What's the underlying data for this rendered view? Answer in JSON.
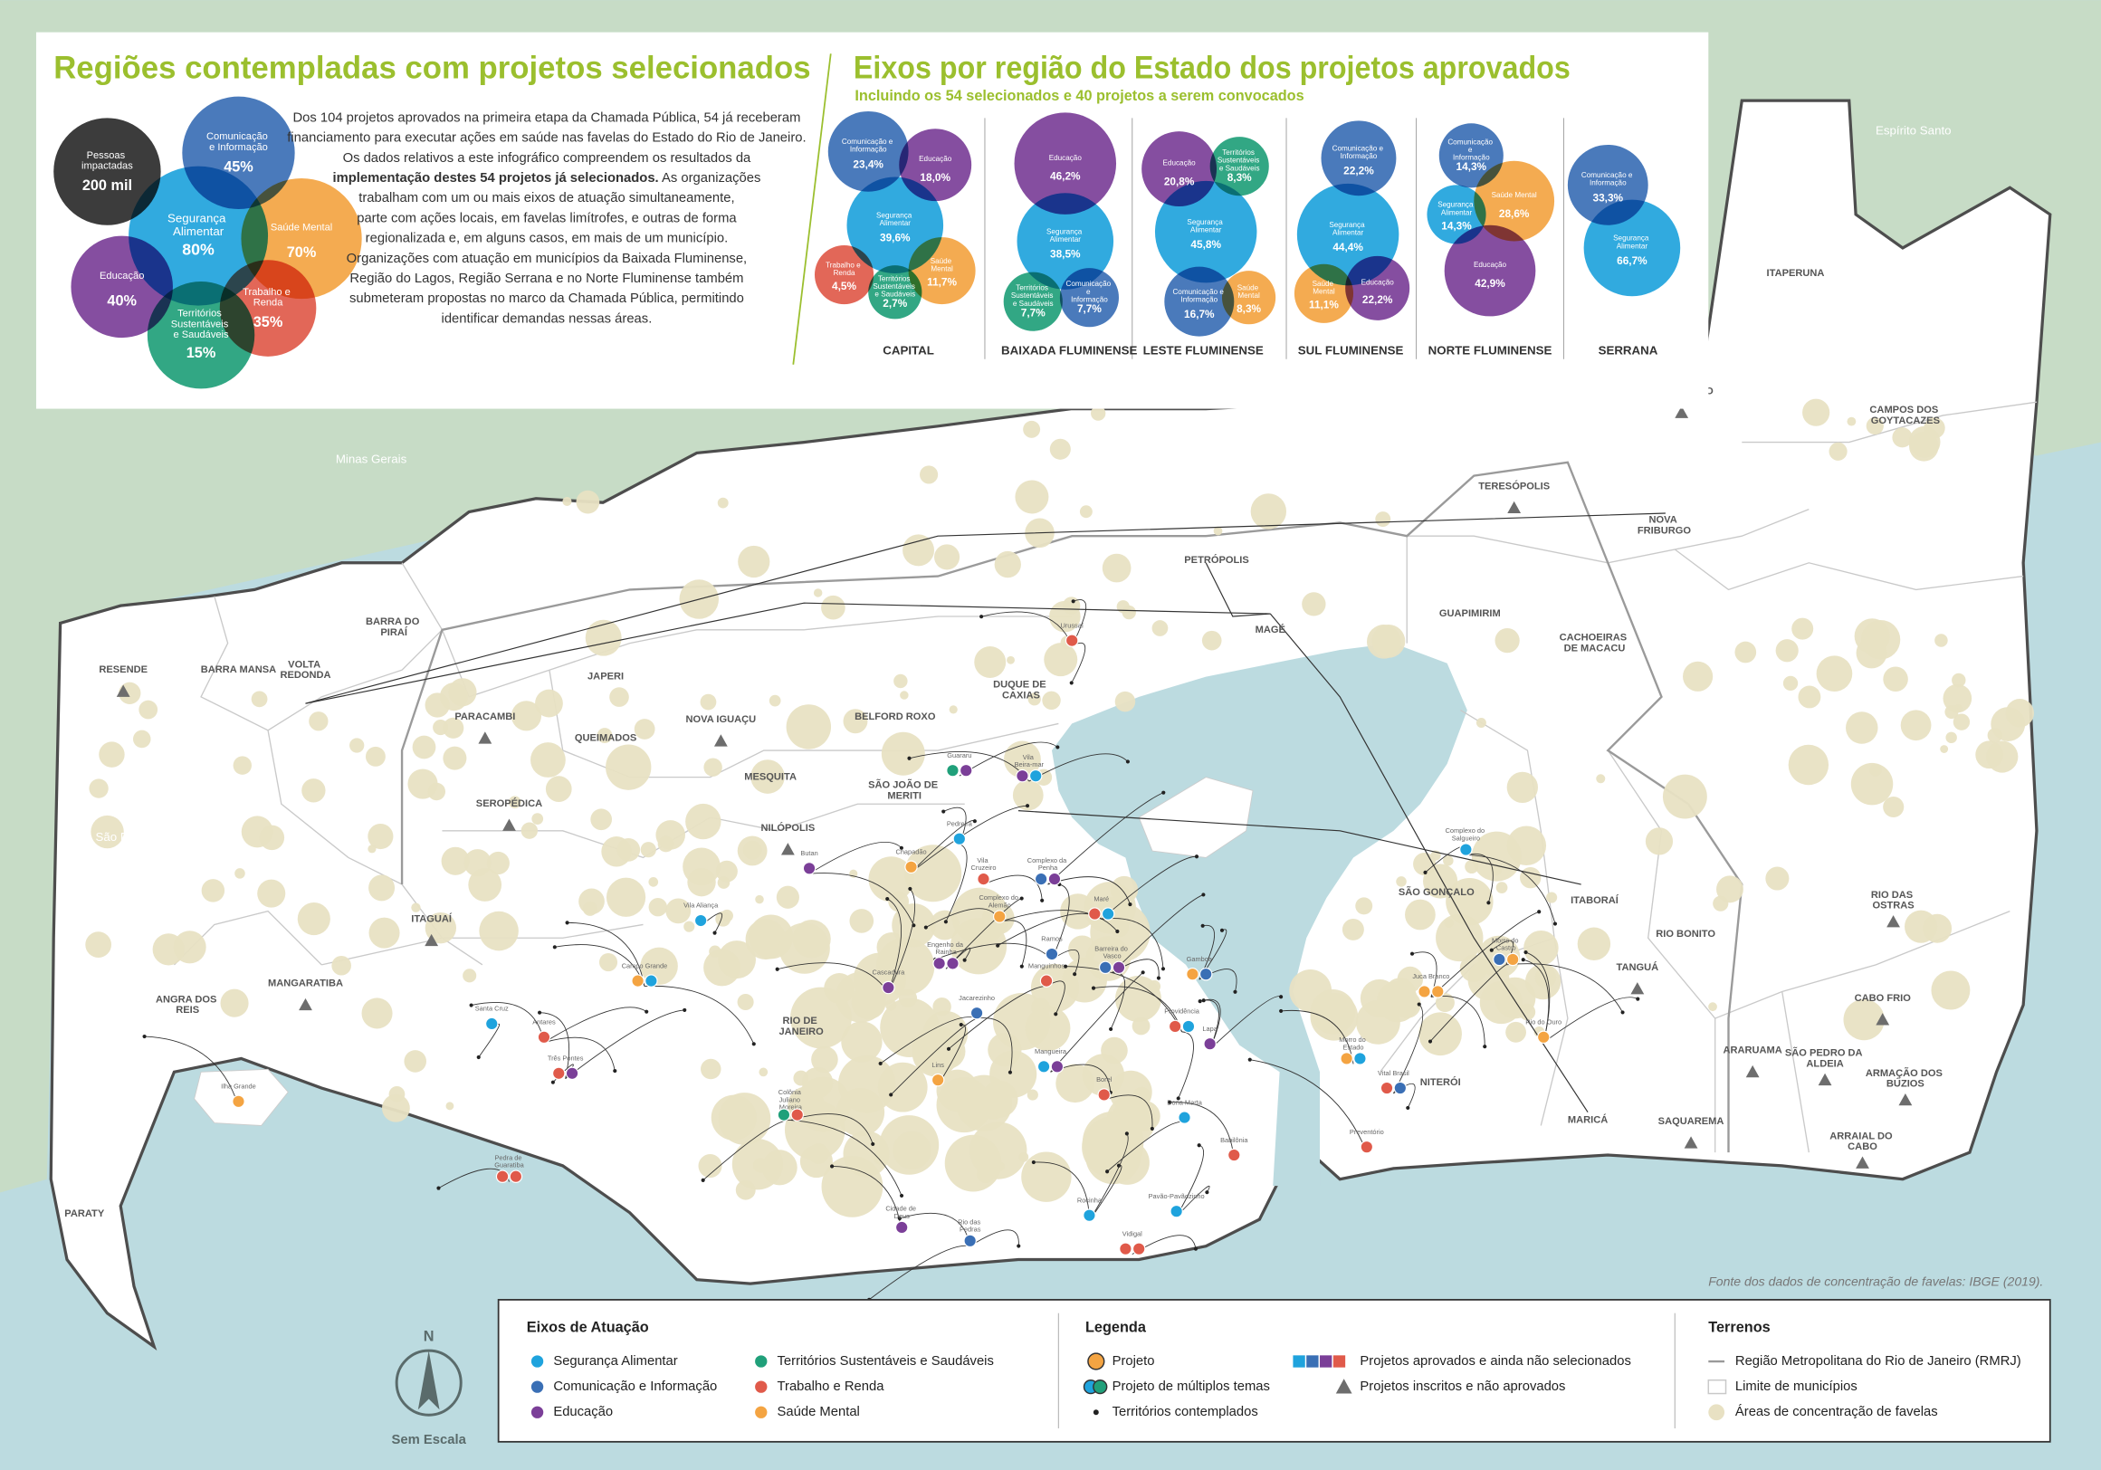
{
  "left_panel": {
    "title": "Regiões contempladas com projetos selecionados",
    "bubbles": [
      {
        "label": "Pessoas impactadas",
        "value": "200 mil",
        "color": "#2b2b2b"
      },
      {
        "label": "Comunicação e Informação",
        "value": "45%",
        "color": "#3a6fb5"
      },
      {
        "label": "Segurança Alimentar",
        "value": "80%",
        "color": "#1fa3dd"
      },
      {
        "label": "Saúde Mental",
        "value": "70%",
        "color": "#f4a442"
      },
      {
        "label": "Educação",
        "value": "40%",
        "color": "#7b3f98"
      },
      {
        "label": "Trabalho e Renda",
        "value": "35%",
        "color": "#e05a4a"
      },
      {
        "label": "Territórios Sustentáveis e Saudáveis",
        "value": "15%",
        "color": "#20a07a"
      }
    ],
    "paragraph": [
      [
        {
          "text": "Dos 104 projetos aprovados na primeira etapa da Chamada Pública, 54 já receberam"
        }
      ],
      [
        {
          "text": "financiamento para executar ações em saúde nas favelas do Estado do Rio de Janeiro."
        }
      ],
      [
        {
          "text": "Os dados relativos a este infográfico compreendem os resultados da"
        }
      ],
      [
        {
          "text": "implementação destes 54 projetos já selecionados.",
          "bold": true
        },
        {
          "text": " As organizações"
        }
      ],
      [
        {
          "text": "trabalham com um ou mais eixos de atuação simultaneamente,"
        }
      ],
      [
        {
          "text": "parte com ações locais, em favelas limítrofes, e outras de forma"
        }
      ],
      [
        {
          "text": "regionalizada e, em alguns casos, em mais de um município."
        }
      ],
      [
        {
          "text": "Organizações com atuação em municípios da Baixada Fluminense,"
        }
      ],
      [
        {
          "text": "Região do Lagos, Região Serrana e no Norte Fluminense também"
        }
      ],
      [
        {
          "text": "submeteram propostas no marco da Chamada Pública, permitindo"
        }
      ],
      [
        {
          "text": "identificar demandas nessas áreas."
        }
      ]
    ]
  },
  "right_panel": {
    "title": "Eixos por região do Estado dos projetos aprovados",
    "subtitle": "Incluindo os 54 selecionados e 40 projetos a serem convocados",
    "regions": [
      {
        "name": "CAPITAL",
        "bubbles": [
          {
            "label": "Comunicação e Informação",
            "value": "23,4%",
            "color": "#3a6fb5"
          },
          {
            "label": "Educação",
            "value": "18,0%",
            "color": "#7b3f98"
          },
          {
            "label": "Segurança Alimentar",
            "value": "39,6%",
            "color": "#1fa3dd"
          },
          {
            "label": "Trabalho e Renda",
            "value": "4,5%",
            "color": "#e05a4a"
          },
          {
            "label": "Territórios Sustentáveis e Saudáveis",
            "value": "2,7%",
            "color": "#20a07a"
          },
          {
            "label": "Saúde Mental",
            "value": "11,7%",
            "color": "#f4a442"
          }
        ]
      },
      {
        "name": "BAIXADA FLUMINENSE",
        "bubbles": [
          {
            "label": "Educação",
            "value": "46,2%",
            "color": "#7b3f98"
          },
          {
            "label": "Segurança Alimentar",
            "value": "38,5%",
            "color": "#1fa3dd"
          },
          {
            "label": "Territórios Sustentáveis e Saudáveis",
            "value": "7,7%",
            "color": "#20a07a"
          },
          {
            "label": "Comunicação e Informação",
            "value": "7,7%",
            "color": "#3a6fb5"
          }
        ]
      },
      {
        "name": "LESTE FLUMINENSE",
        "bubbles": [
          {
            "label": "Educação",
            "value": "20,8%",
            "color": "#7b3f98"
          },
          {
            "label": "Territórios Sustentáveis e Saudáveis",
            "value": "8,3%",
            "color": "#20a07a"
          },
          {
            "label": "Segurança Alimentar",
            "value": "45,8%",
            "color": "#1fa3dd"
          },
          {
            "label": "Comunicação e Informação",
            "value": "16,7%",
            "color": "#3a6fb5"
          },
          {
            "label": "Saúde Mental",
            "value": "8,3%",
            "color": "#f4a442"
          }
        ]
      },
      {
        "name": "SUL FLUMINENSE",
        "bubbles": [
          {
            "label": "Comunicação e Informação",
            "value": "22,2%",
            "color": "#3a6fb5"
          },
          {
            "label": "Segurança Alimentar",
            "value": "44,4%",
            "color": "#1fa3dd"
          },
          {
            "label": "Saúde Mental",
            "value": "11,1%",
            "color": "#f4a442"
          },
          {
            "label": "Educação",
            "value": "22,2%",
            "color": "#7b3f98"
          }
        ]
      },
      {
        "name": "NORTE FLUMINENSE",
        "bubbles": [
          {
            "label": "Comunicação e Informação",
            "value": "14,3%",
            "color": "#3a6fb5"
          },
          {
            "label": "Saúde Mental",
            "value": "28,6%",
            "color": "#f4a442"
          },
          {
            "label": "Segurança Alimentar",
            "value": "14,3%",
            "color": "#1fa3dd"
          },
          {
            "label": "Educação",
            "value": "42,9%",
            "color": "#7b3f98"
          }
        ]
      },
      {
        "name": "SERRANA",
        "bubbles": [
          {
            "label": "Comunicação e Informação",
            "value": "33,3%",
            "color": "#3a6fb5"
          },
          {
            "label": "Segurança Alimentar",
            "value": "66,7%",
            "color": "#1fa3dd"
          }
        ]
      }
    ]
  },
  "map": {
    "states": [
      "Minas Gerais",
      "Espírito Santo",
      "São Paulo"
    ],
    "municipalities": [
      "RESENDE",
      "BARRA MANSA",
      "VOLTA REDONDA",
      "BARRA DO PIRAÍ",
      "PARACAMBI",
      "JAPERI",
      "QUEIMADOS",
      "NOVA IGUAÇU",
      "MESQUITA",
      "BELFORD ROXO",
      "DUQUE DE CAXIAS",
      "SÃO JOÃO DE MERITI",
      "NILÓPOLIS",
      "SEROPÉDICA",
      "ITAGUAÍ",
      "MANGARATIBA",
      "ANGRA DOS REIS",
      "PARATY",
      "RIO DE JANEIRO",
      "NITERÓI",
      "SÃO GONÇALO",
      "ITABORAÍ",
      "MARICÁ",
      "TANGUÁ",
      "RIO BONITO",
      "GUAPIMIRIM",
      "CACHOEIRAS DE MACACU",
      "MAGÉ",
      "PETRÓPOLIS",
      "TERESÓPOLIS",
      "NOVA FRIBURGO",
      "CANTAGALO",
      "CAMPOS DOS GOYTACAZES",
      "ITAPERUNA",
      "RIO DAS OSTRAS",
      "CABO FRIO",
      "ARARUAMA",
      "SÃO PEDRO DA ALDEIA",
      "ARMAÇÃO DOS BÚZIOS",
      "ARRAIAL DO CABO",
      "SAQUAREMA"
    ],
    "places": [
      "Urussaí",
      "Guararu",
      "Vila Beira-mar",
      "Pedreira",
      "Chapadão",
      "Butan",
      "Vila Cruzeiro",
      "Complexo da Penha",
      "Complexo do Alemão",
      "Maré",
      "Vila Aliança",
      "Ramos",
      "Engenho da Rainha",
      "Jacarezinho",
      "Manguinhos",
      "Barreira do Vasco",
      "Gamboa",
      "Campo Grande",
      "Cascadura",
      "Santa Cruz",
      "Antares",
      "Três Pontes",
      "Lins",
      "Mangueira",
      "Providência",
      "Lapa",
      "Morro do Estado",
      "Vital Brasil",
      "Juca Branco",
      "Rio do Ouro",
      "Complexo do Salgueiro",
      "Morro do Castro",
      "Preventório",
      "Borel",
      "Dona Marta",
      "Babilônia",
      "Rocinha",
      "Pavão-Pavãozinho",
      "Vidigal",
      "Cidade de Deus",
      "Rio das Pedras",
      "Pedra de Guaratiba",
      "Ilha Grande",
      "Colônia Juliano Moreira"
    ],
    "source": "Fonte dos dados de concentração de favelas: IBGE (2019)."
  },
  "legend": {
    "north": "N",
    "scale_note": "Sem Escala",
    "sections": [
      {
        "title": "Eixos de Atuação",
        "items": [
          {
            "text": "Segurança Alimentar",
            "color": "#1fa3dd"
          },
          {
            "text": "Comunicação e Informação",
            "color": "#3a6fb5"
          },
          {
            "text": "Educação",
            "color": "#7b3f98"
          },
          {
            "text": "Territórios Sustentáveis e Saudáveis",
            "color": "#20a07a"
          },
          {
            "text": "Trabalho e Renda",
            "color": "#e05a4a"
          },
          {
            "text": "Saúde Mental",
            "color": "#f4a442"
          }
        ]
      },
      {
        "title": "Legenda",
        "items": [
          {
            "text": "Projeto"
          },
          {
            "text": "Projeto de múltiplos temas"
          },
          {
            "text": "Territórios contemplados"
          },
          {
            "text": "Projetos aprovados e ainda não selecionados"
          },
          {
            "text": "Projetos inscritos e não aprovados"
          }
        ]
      },
      {
        "title": "Terrenos",
        "items": [
          {
            "text": "Região Metropolitana do Rio de Janeiro (RMRJ)"
          },
          {
            "text": "Limite de municípios"
          },
          {
            "text": "Áreas de concentração de favelas"
          }
        ]
      }
    ]
  }
}
